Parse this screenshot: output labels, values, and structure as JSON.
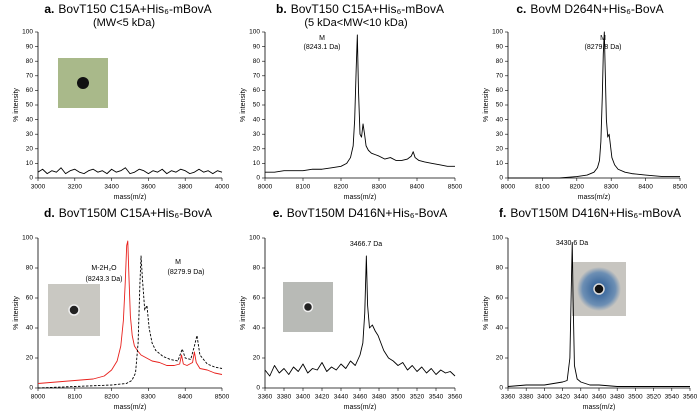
{
  "chart_data": [
    {
      "type": "line",
      "label": "a.",
      "title": "BovT150 C15A+His₆-mBovA",
      "subtitle": "(MW<5 kDa)",
      "xlabel": "mass(m/z)",
      "ylabel": "% intensity",
      "xlim": [
        3000,
        4000
      ],
      "xticks": [
        3000,
        3200,
        3400,
        3600,
        3800,
        4000
      ],
      "ylim": [
        0,
        100
      ],
      "yticks": [
        0,
        10,
        20,
        30,
        40,
        50,
        60,
        70,
        80,
        90,
        100
      ],
      "series": [
        {
          "color": "#000000",
          "dash": false,
          "x": [
            3000,
            3025,
            3050,
            3075,
            3100,
            3125,
            3150,
            3175,
            3200,
            3225,
            3250,
            3275,
            3300,
            3325,
            3350,
            3375,
            3400,
            3425,
            3450,
            3475,
            3500,
            3525,
            3550,
            3575,
            3600,
            3625,
            3650,
            3675,
            3700,
            3725,
            3750,
            3775,
            3800,
            3825,
            3850,
            3875,
            3900,
            3925,
            3950,
            3975,
            4000
          ],
          "values": [
            4,
            6,
            3,
            5,
            4,
            7,
            3,
            5,
            6,
            4,
            3,
            5,
            6,
            4,
            5,
            3,
            6,
            4,
            5,
            7,
            3,
            4,
            6,
            5,
            3,
            5,
            4,
            6,
            3,
            5,
            4,
            6,
            5,
            3,
            4,
            6,
            4,
            5,
            3,
            5,
            4
          ]
        }
      ],
      "annotations": []
    },
    {
      "type": "line",
      "label": "b.",
      "title": "BovT150 C15A+His₆-mBovA",
      "subtitle": "(5 kDa<MW<10 kDa)",
      "xlabel": "mass(m/z)",
      "ylabel": "% intensity",
      "xlim": [
        8000,
        8500
      ],
      "xticks": [
        8000,
        8100,
        8200,
        8300,
        8400,
        8500
      ],
      "ylim": [
        0,
        100
      ],
      "yticks": [
        0,
        10,
        20,
        30,
        40,
        50,
        60,
        70,
        80,
        90,
        100
      ],
      "series": [
        {
          "color": "#000000",
          "dash": false,
          "x": [
            8000,
            8025,
            8050,
            8075,
            8100,
            8125,
            8150,
            8175,
            8200,
            8215,
            8225,
            8232,
            8236,
            8240,
            8243,
            8246,
            8250,
            8254,
            8258,
            8262,
            8266,
            8272,
            8280,
            8290,
            8300,
            8315,
            8330,
            8345,
            8360,
            8375,
            8385,
            8390,
            8395,
            8405,
            8420,
            8440,
            8460,
            8480,
            8500
          ],
          "values": [
            4,
            4,
            5,
            5,
            5,
            6,
            6,
            7,
            8,
            10,
            14,
            22,
            40,
            75,
            98,
            60,
            30,
            28,
            37,
            30,
            22,
            19,
            17,
            16,
            15,
            13,
            14,
            12,
            12,
            13,
            15,
            18,
            14,
            12,
            11,
            10,
            9,
            8,
            8
          ]
        }
      ],
      "annotations": [
        "M",
        "(8243.1 Da)"
      ]
    },
    {
      "type": "line",
      "label": "c.",
      "title": "BovM D264N+His₆-BovA",
      "xlabel": "mass(m/z)",
      "ylabel": "% intensity",
      "xlim": [
        8000,
        8500
      ],
      "xticks": [
        8000,
        8100,
        8200,
        8300,
        8400,
        8500
      ],
      "ylim": [
        0,
        100
      ],
      "yticks": [
        0,
        10,
        20,
        30,
        40,
        50,
        60,
        70,
        80,
        90,
        100
      ],
      "series": [
        {
          "color": "#000000",
          "dash": false,
          "x": [
            8000,
            8050,
            8100,
            8150,
            8200,
            8230,
            8250,
            8260,
            8266,
            8270,
            8274,
            8277,
            8280,
            8283,
            8286,
            8290,
            8294,
            8298,
            8302,
            8310,
            8320,
            8340,
            8360,
            8400,
            8450,
            8500
          ],
          "values": [
            0,
            0,
            0,
            0,
            1,
            2,
            4,
            7,
            12,
            25,
            55,
            85,
            100,
            70,
            40,
            28,
            30,
            22,
            14,
            9,
            6,
            4,
            3,
            2,
            1,
            1
          ]
        }
      ],
      "annotations": [
        "M",
        "(8279.8 Da)"
      ]
    },
    {
      "type": "line",
      "label": "d.",
      "title": "BovT150M C15A+His₆-BovA",
      "xlabel": "mass(m/z)",
      "ylabel": "% intensity",
      "xlim": [
        8000,
        8500
      ],
      "xticks": [
        8000,
        8100,
        8200,
        8300,
        8400,
        8500
      ],
      "ylim": [
        0,
        100
      ],
      "yticks": [
        0,
        20,
        40,
        60,
        80,
        100
      ],
      "series": [
        {
          "color": "#e8201c",
          "dash": false,
          "x": [
            8000,
            8050,
            8100,
            8150,
            8180,
            8200,
            8215,
            8225,
            8232,
            8237,
            8241,
            8244,
            8247,
            8251,
            8256,
            8262,
            8270,
            8280,
            8295,
            8310,
            8330,
            8350,
            8370,
            8385,
            8390,
            8395,
            8405,
            8420,
            8425,
            8430,
            8440,
            8460,
            8480,
            8500
          ],
          "values": [
            3,
            4,
            5,
            6,
            8,
            12,
            18,
            28,
            45,
            70,
            95,
            98,
            75,
            48,
            35,
            28,
            25,
            22,
            20,
            18,
            17,
            15,
            15,
            16,
            22,
            16,
            15,
            17,
            24,
            17,
            13,
            12,
            10,
            9
          ]
        },
        {
          "color": "#000000",
          "dash": true,
          "x": [
            8000,
            8100,
            8200,
            8240,
            8255,
            8265,
            8272,
            8277,
            8280,
            8284,
            8290,
            8296,
            8302,
            8310,
            8320,
            8340,
            8360,
            8380,
            8392,
            8400,
            8415,
            8425,
            8432,
            8440,
            8460,
            8480,
            8500
          ],
          "values": [
            0,
            1,
            2,
            3,
            5,
            10,
            30,
            70,
            88,
            72,
            52,
            55,
            40,
            30,
            25,
            21,
            19,
            18,
            26,
            20,
            19,
            28,
            35,
            22,
            16,
            14,
            13
          ]
        }
      ],
      "annotations": [
        "M-2H₂O",
        "(8243.3 Da)",
        "M",
        "(8279.9 Da)"
      ]
    },
    {
      "type": "line",
      "label": "e.",
      "title": "BovT150M D416N+His₆-BovA",
      "xlabel": "mass(m/z)",
      "ylabel": "% intensity",
      "xlim": [
        3360,
        3560
      ],
      "xticks": [
        3360,
        3380,
        3400,
        3420,
        3440,
        3460,
        3480,
        3500,
        3520,
        3540,
        3560
      ],
      "ylim": [
        0,
        100
      ],
      "yticks": [
        0,
        20,
        40,
        60,
        80,
        100
      ],
      "series": [
        {
          "color": "#000000",
          "dash": false,
          "x": [
            3360,
            3365,
            3370,
            3375,
            3380,
            3385,
            3390,
            3395,
            3400,
            3405,
            3410,
            3415,
            3420,
            3425,
            3430,
            3435,
            3440,
            3445,
            3450,
            3455,
            3460,
            3463,
            3465,
            3466.7,
            3468,
            3470,
            3473,
            3476,
            3479,
            3482,
            3485,
            3490,
            3495,
            3500,
            3505,
            3510,
            3515,
            3520,
            3525,
            3530,
            3535,
            3540,
            3545,
            3550,
            3555,
            3560
          ],
          "values": [
            12,
            8,
            15,
            10,
            13,
            9,
            14,
            11,
            16,
            10,
            13,
            12,
            17,
            11,
            14,
            12,
            16,
            13,
            18,
            15,
            22,
            30,
            50,
            88,
            55,
            40,
            42,
            38,
            35,
            30,
            25,
            20,
            18,
            15,
            17,
            12,
            15,
            11,
            14,
            10,
            13,
            9,
            12,
            10,
            11,
            8
          ]
        }
      ],
      "annotations": [
        "3466.7 Da"
      ]
    },
    {
      "type": "line",
      "label": "f.",
      "title": "BovT150M D416N+His₆-mBovA",
      "xlabel": "mass(m/z)",
      "ylabel": "% intensity",
      "xlim": [
        3360,
        3560
      ],
      "xticks": [
        3360,
        3380,
        3400,
        3420,
        3440,
        3460,
        3480,
        3500,
        3520,
        3540,
        3560
      ],
      "ylim": [
        0,
        100
      ],
      "yticks": [
        0,
        20,
        40,
        60,
        80,
        100
      ],
      "series": [
        {
          "color": "#000000",
          "dash": false,
          "x": [
            3360,
            3380,
            3400,
            3410,
            3420,
            3425,
            3428,
            3430,
            3430.6,
            3431.5,
            3433,
            3436,
            3440,
            3445,
            3450,
            3460,
            3480,
            3500,
            3520,
            3540,
            3560
          ],
          "values": [
            1,
            2,
            2,
            3,
            4,
            5,
            20,
            80,
            97,
            60,
            15,
            6,
            4,
            3,
            2,
            2,
            1,
            1,
            1,
            1,
            1
          ]
        }
      ],
      "annotations": [
        "3430.6 Da"
      ]
    }
  ]
}
